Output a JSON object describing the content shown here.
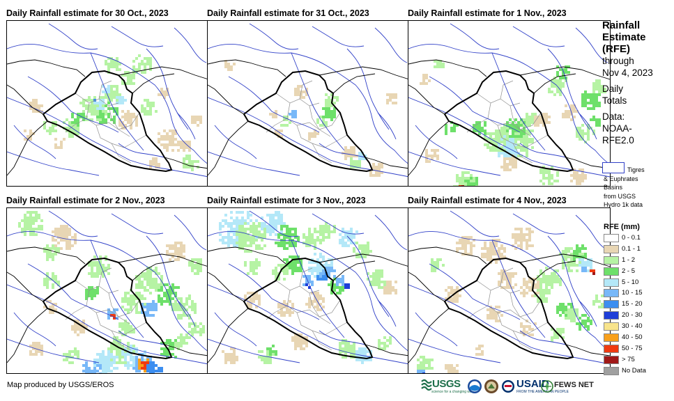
{
  "panels": [
    {
      "title": "Daily Rainfall estimate for 30 Oct., 2023",
      "scenario": "oct30"
    },
    {
      "title": "Daily Rainfall estimate for 31 Oct., 2023",
      "scenario": "oct31"
    },
    {
      "title": "Daily Rainfall estimate for 1 Nov., 2023",
      "scenario": "nov1"
    },
    {
      "title": "Daily Rainfall estimate for 2 Nov., 2023",
      "scenario": "nov2"
    },
    {
      "title": "Daily Rainfall estimate for 3 Nov., 2023",
      "scenario": "nov3"
    },
    {
      "title": "Daily Rainfall estimate for 4 Nov., 2023",
      "scenario": "nov4"
    }
  ],
  "sidebar": {
    "title_line1": "Rainfall",
    "title_line2": "Estimate",
    "title_line3": "(RFE)",
    "through_line1": "through",
    "through_line2": "Nov 4, 2023",
    "totals_line1": "Daily",
    "totals_line2": "Totals",
    "data_line1": "Data:",
    "data_line2": "NOAA-",
    "data_line3": "RFE2.0"
  },
  "basin_key": {
    "line1": "Tigres",
    "line2": "& Euphrates",
    "line3": "Basins",
    "line4": "from USGS",
    "line5": "Hydro 1k data"
  },
  "legend": {
    "title": "RFE (mm)",
    "items": [
      {
        "label": "0 - 0.1",
        "color": "#ffffff"
      },
      {
        "label": "0.1 - 1",
        "color": "#e8d6b4"
      },
      {
        "label": "1 - 2",
        "color": "#b6f3a4"
      },
      {
        "label": "2 - 5",
        "color": "#6ee06a"
      },
      {
        "label": "5 - 10",
        "color": "#b4e8f8"
      },
      {
        "label": "10 - 15",
        "color": "#78b8f8"
      },
      {
        "label": "15 - 20",
        "color": "#3c8ef0"
      },
      {
        "label": "20 - 30",
        "color": "#1e3ed8"
      },
      {
        "label": "30 - 40",
        "color": "#f8e48c"
      },
      {
        "label": "40 - 50",
        "color": "#f8a01c"
      },
      {
        "label": "50 - 75",
        "color": "#f03a10"
      },
      {
        "label": "> 75",
        "color": "#a01818"
      },
      {
        "label": "No Data",
        "color": "#a0a0a0"
      }
    ]
  },
  "footer": {
    "credit": "Map produced by USGS/EROS",
    "usgs_logo": "USGS",
    "usgs_tagline": "science for a changing world",
    "usaid_logo": "USAID",
    "usaid_tagline": "FROM THE AMERICAN PEOPLE",
    "fews_logo": "FEWS NET"
  },
  "colors": {
    "basin_line": "#3040c8",
    "country_border": "#000000",
    "province_border": "#909090"
  }
}
